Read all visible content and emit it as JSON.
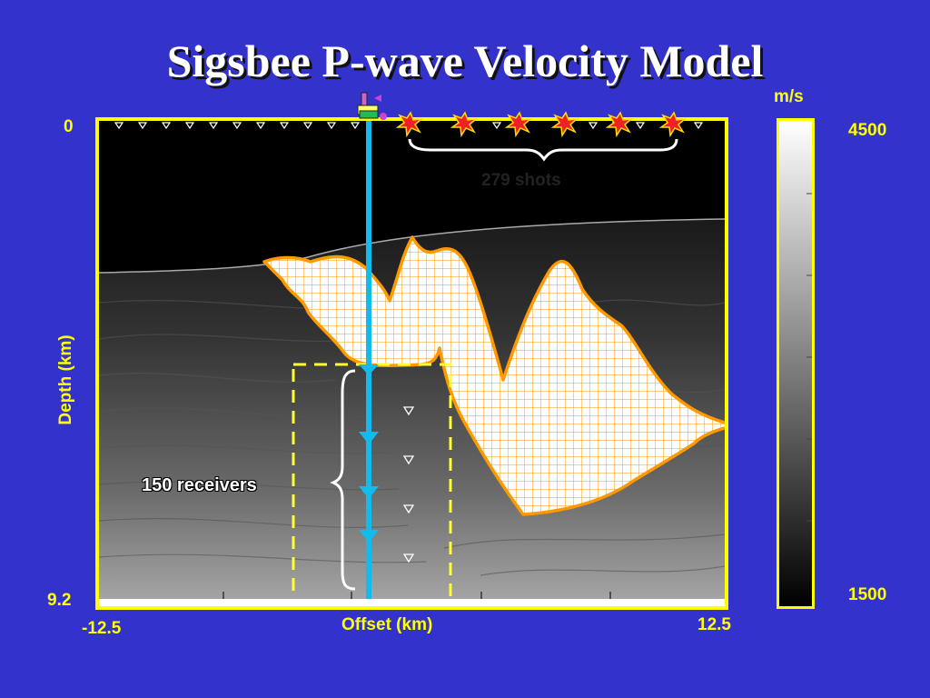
{
  "title": "Sigsbee P-wave Velocity Model",
  "axes": {
    "depth_top": "0",
    "depth_bottom": "9.2",
    "depth_label": "Depth (km)",
    "offset_left": "-12.5",
    "offset_right": "12.5",
    "offset_label": "Offset (km)"
  },
  "colorbar": {
    "unit": "m/s",
    "max": "4500",
    "min": "1500"
  },
  "annotations": {
    "shots": "279 shots",
    "receivers": "150 receivers"
  },
  "colors": {
    "background": "#3333cc",
    "frame": "#ffff00",
    "salt_outline": "#ff9900",
    "borehole": "#11bbee"
  },
  "icons": [
    "shot-star-icon",
    "receiver-triangle-icon",
    "rig-icon"
  ]
}
